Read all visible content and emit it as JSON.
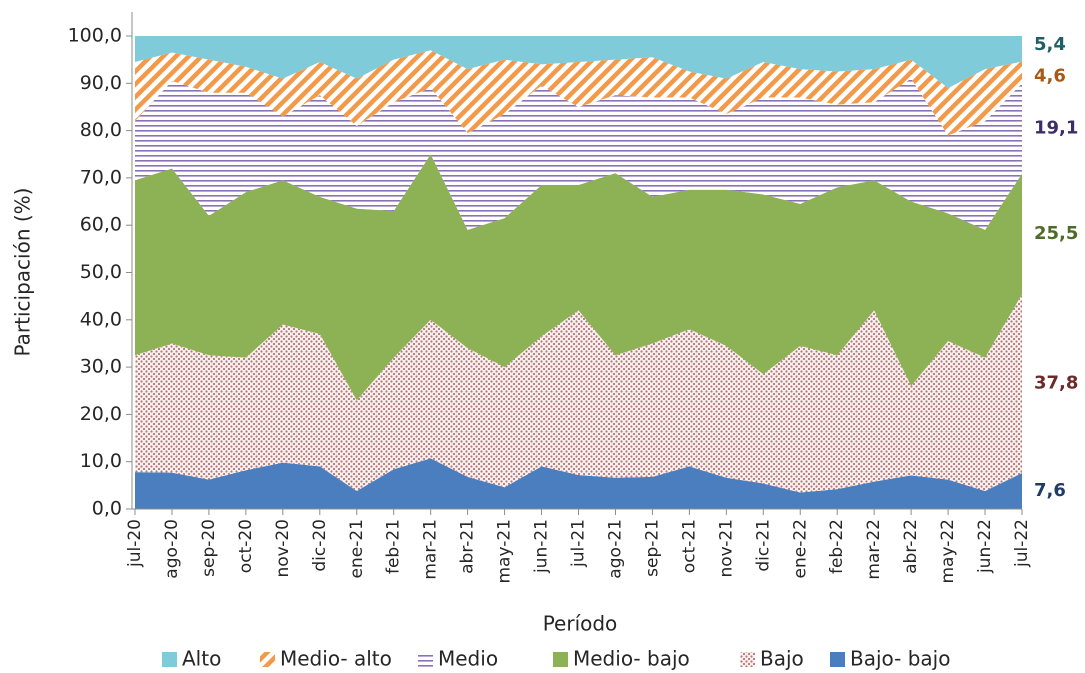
{
  "chart_data": {
    "type": "stacked_area",
    "x_label": "Período",
    "y_label": "Participación (%)",
    "categories": [
      "jul-20",
      "ago-20",
      "sep-20",
      "oct-20",
      "nov-20",
      "dic-20",
      "ene-21",
      "feb-21",
      "mar-21",
      "abr-21",
      "may-21",
      "jun-21",
      "jul-21",
      "ago-21",
      "sep-21",
      "oct-21",
      "nov-21",
      "dic-21",
      "ene-22",
      "feb-22",
      "mar-22",
      "abr-22",
      "may-22",
      "jun-22",
      "jul-22"
    ],
    "ylim": [
      0,
      100
    ],
    "yticks": [
      {
        "value": 0,
        "label": "0,0"
      },
      {
        "value": 10,
        "label": "10,0"
      },
      {
        "value": 20,
        "label": "20,0"
      },
      {
        "value": 30,
        "label": "30,0"
      },
      {
        "value": 40,
        "label": "40,0"
      },
      {
        "value": 50,
        "label": "50,0"
      },
      {
        "value": 60,
        "label": "60,0"
      },
      {
        "value": 70,
        "label": "70,0"
      },
      {
        "value": 80,
        "label": "80,0"
      },
      {
        "value": 90,
        "label": "90,0"
      },
      {
        "value": 100,
        "label": "100,0"
      }
    ],
    "legend": "bottom",
    "series": [
      {
        "name": "Bajo- bajo",
        "color": "#4a7ebf",
        "pattern": "solid",
        "label_color": "#1f3b66",
        "values": [
          7.8,
          7.7,
          6.2,
          8.2,
          9.8,
          9.0,
          3.8,
          8.4,
          10.7,
          6.8,
          4.6,
          9.0,
          7.2,
          6.6,
          6.8,
          9.0,
          6.6,
          5.4,
          3.5,
          4.2,
          5.8,
          7.1,
          6.2,
          3.8,
          7.6
        ],
        "value_labels": [
          null,
          null,
          null,
          null,
          null,
          null,
          null,
          null,
          null,
          null,
          null,
          null,
          null,
          null,
          null,
          null,
          null,
          null,
          null,
          null,
          null,
          null,
          null,
          null,
          "7,6"
        ]
      },
      {
        "name": "Bajo",
        "color": "#b07878",
        "pattern": "dots",
        "label_color": "#6b2b2b",
        "values": [
          24.7,
          27.3,
          26.3,
          23.8,
          29.2,
          28.0,
          19.2,
          23.6,
          29.3,
          27.2,
          25.4,
          27.5,
          34.8,
          25.9,
          28.2,
          29.0,
          27.9,
          23.1,
          31.0,
          28.3,
          36.2,
          18.9,
          29.3,
          28.2,
          37.8
        ],
        "value_labels": [
          null,
          null,
          null,
          null,
          null,
          null,
          null,
          null,
          null,
          null,
          null,
          null,
          null,
          null,
          null,
          null,
          null,
          null,
          null,
          null,
          null,
          null,
          null,
          null,
          "37,8"
        ]
      },
      {
        "name": "Medio- bajo",
        "color": "#8db255",
        "pattern": "solid",
        "label_color": "#4f6b28",
        "values": [
          37.0,
          37.0,
          29.5,
          35.0,
          30.5,
          29.0,
          40.5,
          31.0,
          35.0,
          25.0,
          31.5,
          32.0,
          26.5,
          38.5,
          31.0,
          29.5,
          33.0,
          38.0,
          30.0,
          35.5,
          27.5,
          39.0,
          27.0,
          27.0,
          25.5
        ],
        "value_labels": [
          null,
          null,
          null,
          null,
          null,
          null,
          null,
          null,
          null,
          null,
          null,
          null,
          null,
          null,
          null,
          null,
          null,
          null,
          null,
          null,
          null,
          null,
          null,
          null,
          "25,5"
        ]
      },
      {
        "name": "Medio",
        "color": "#8a72b8",
        "pattern": "horizontal",
        "label_color": "#3f2d66",
        "values": [
          12.5,
          18.5,
          26.0,
          21.0,
          13.5,
          21.5,
          17.5,
          23.0,
          14.0,
          20.5,
          22.0,
          21.0,
          16.5,
          16.5,
          21.0,
          19.5,
          16.0,
          20.5,
          22.5,
          17.5,
          16.5,
          26.0,
          16.5,
          23.0,
          19.1
        ],
        "value_labels": [
          null,
          null,
          null,
          null,
          null,
          null,
          null,
          null,
          null,
          null,
          null,
          null,
          null,
          null,
          null,
          null,
          null,
          null,
          null,
          null,
          null,
          null,
          null,
          null,
          "19,1"
        ]
      },
      {
        "name": "Medio- alto",
        "color": "#f29a4a",
        "pattern": "diagonal",
        "label_color": "#a85a14",
        "values": [
          12.5,
          6.0,
          7.0,
          5.5,
          8.0,
          7.0,
          10.0,
          9.0,
          8.0,
          13.5,
          11.5,
          4.5,
          9.5,
          7.5,
          8.5,
          5.5,
          7.5,
          7.5,
          6.0,
          7.0,
          7.0,
          4.0,
          10.0,
          11.0,
          4.6
        ],
        "value_labels": [
          null,
          null,
          null,
          null,
          null,
          null,
          null,
          null,
          null,
          null,
          null,
          null,
          null,
          null,
          null,
          null,
          null,
          null,
          null,
          null,
          null,
          null,
          null,
          null,
          "4,6"
        ]
      },
      {
        "name": "Alto",
        "color": "#7fcbd9",
        "pattern": "solid",
        "label_color": "#1f5f66",
        "values": [
          5.5,
          3.5,
          5.0,
          6.5,
          9.0,
          5.5,
          9.0,
          5.0,
          3.0,
          7.0,
          5.0,
          6.0,
          5.5,
          5.0,
          4.5,
          7.5,
          9.0,
          5.5,
          7.0,
          7.5,
          7.0,
          5.0,
          11.0,
          7.0,
          5.4
        ],
        "value_labels": [
          null,
          null,
          null,
          null,
          null,
          null,
          null,
          null,
          null,
          null,
          null,
          null,
          null,
          null,
          null,
          null,
          null,
          null,
          null,
          null,
          null,
          null,
          null,
          null,
          "5,4"
        ]
      }
    ]
  }
}
